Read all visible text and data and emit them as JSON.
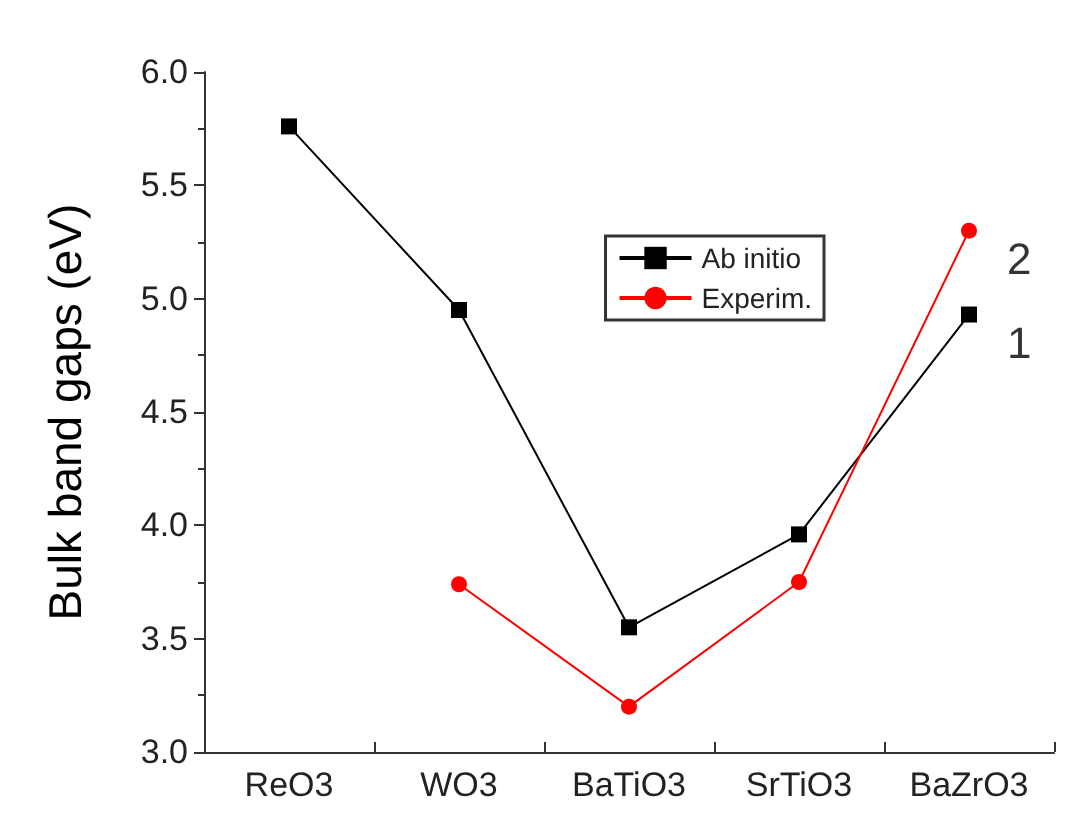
{
  "chart_data": {
    "type": "line",
    "ylabel": "Bulk band gaps (eV)",
    "categories": [
      "ReO3",
      "WO3",
      "BaTiO3",
      "SrTiO3",
      "BaZrO3"
    ],
    "series": [
      {
        "name": "Ab initio",
        "color": "#000000",
        "marker": "square",
        "values": [
          5.76,
          4.95,
          3.55,
          3.96,
          4.93
        ]
      },
      {
        "name": "Experim.",
        "color": "#ff0000",
        "marker": "circle",
        "values": [
          null,
          3.74,
          3.2,
          3.75,
          5.3
        ]
      }
    ],
    "ylim": [
      3.0,
      6.0
    ],
    "yticks": [
      {
        "value": 3,
        "label": "3.0"
      },
      {
        "value": 3.5,
        "label": "3.5"
      },
      {
        "value": 4,
        "label": "4.0"
      },
      {
        "value": 4.5,
        "label": "4.5"
      },
      {
        "value": 5,
        "label": "5.0"
      },
      {
        "value": 5.5,
        "label": "5.5"
      },
      {
        "value": 6,
        "label": "6.0"
      }
    ],
    "grid": false,
    "legend": "top right",
    "annotations": [
      {
        "text": "1",
        "x": "BaZrO3",
        "y": 4.93
      },
      {
        "text": "2",
        "x": "BaZrO3",
        "y": 5.3
      }
    ]
  }
}
